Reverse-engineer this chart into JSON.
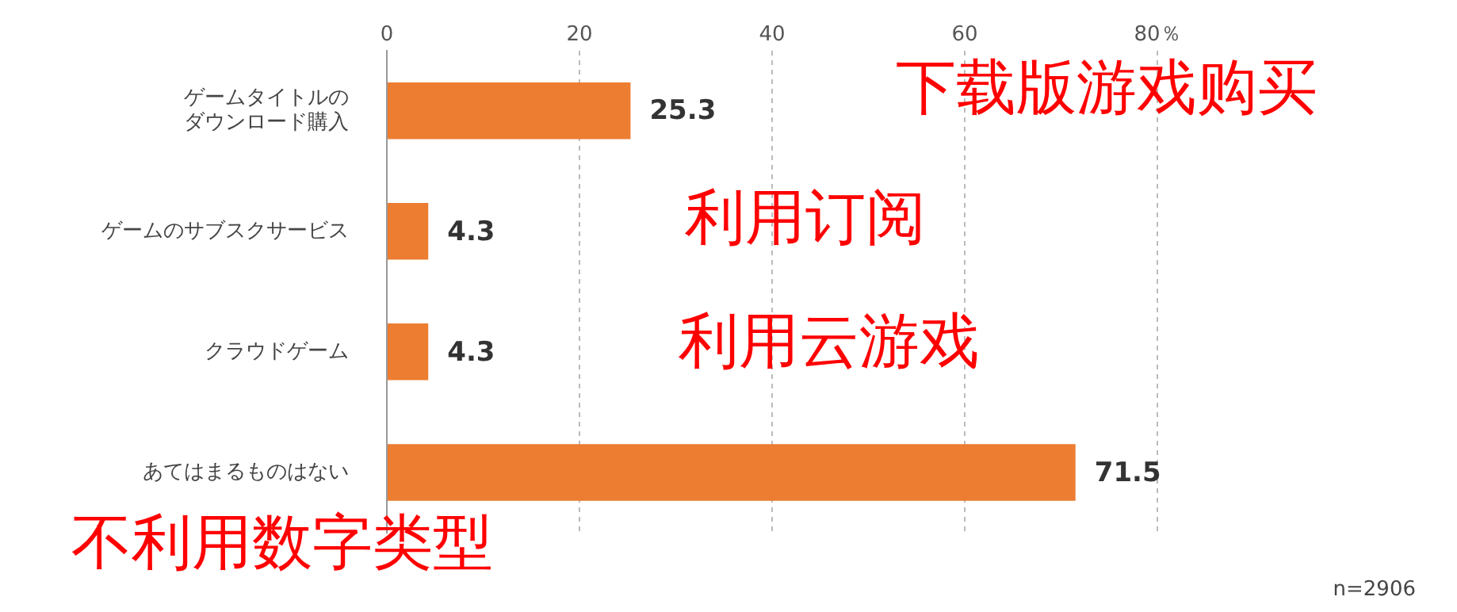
{
  "chart_data": {
    "type": "bar",
    "orientation": "horizontal",
    "categories": [
      "ゲームタイトルのダウンロード購入",
      "ゲームのサブスクサービス",
      "クラウドゲーム",
      "あてはまるものはない"
    ],
    "values": [
      25.3,
      4.3,
      4.3,
      71.5
    ],
    "color": "#ed7d31",
    "xlim": [
      0,
      80
    ],
    "xticks": [
      0,
      20,
      40,
      60,
      {
        "value": 80,
        "label": "80％"
      }
    ],
    "grid": "x",
    "data_labels": true,
    "annotations": [
      "下载版游戏购买",
      "利用订阅",
      "利用云游戏",
      "不利用数字类型",
      "n=2906"
    ]
  }
}
